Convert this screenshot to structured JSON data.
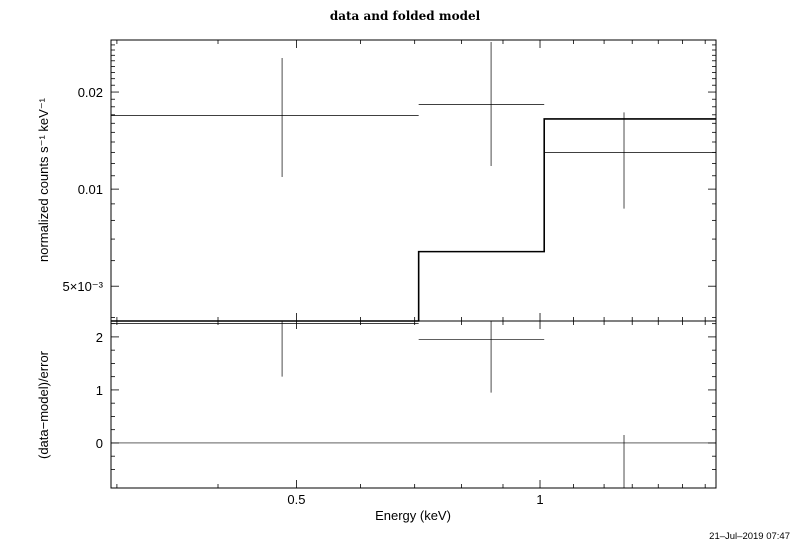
{
  "chart_data": [
    {
      "panel": "top",
      "type": "line",
      "title": "data and folded model",
      "xlabel": "",
      "ylabel": "normalized counts s⁻¹ keV⁻¹",
      "xscale": "log",
      "yscale": "log",
      "xlim": [
        0.295,
        1.65
      ],
      "ylim": [
        0.0039,
        0.029
      ],
      "yticks": [
        {
          "value": 0.02,
          "label": "0.02"
        },
        {
          "value": 0.01,
          "label": "0.01"
        },
        {
          "value": 0.005,
          "label": "5×10⁻³"
        }
      ],
      "data": [
        {
          "xlo": 0.295,
          "xhi": 0.708,
          "x": 0.48,
          "y": 0.0169,
          "ylo": 0.0109,
          "yhi": 0.0255
        },
        {
          "xlo": 0.708,
          "xhi": 1.012,
          "x": 0.87,
          "y": 0.0183,
          "ylo": 0.0118,
          "yhi": 0.0286
        },
        {
          "xlo": 1.012,
          "xhi": 1.65,
          "x": 1.27,
          "y": 0.013,
          "ylo": 0.0087,
          "yhi": 0.0173
        }
      ],
      "model": [
        {
          "xlo": 0.295,
          "xhi": 0.708,
          "y": 0.0039
        },
        {
          "xlo": 0.708,
          "xhi": 1.012,
          "y": 0.0064
        },
        {
          "xlo": 1.012,
          "xhi": 1.65,
          "y": 0.0165
        }
      ]
    },
    {
      "panel": "bottom",
      "type": "line",
      "xlabel": "Energy (keV)",
      "ylabel": "(data−model)/error",
      "xscale": "log",
      "xlim": [
        0.295,
        1.65
      ],
      "ylim": [
        -0.85,
        2.3
      ],
      "xticks": [
        {
          "value": 0.5,
          "label": "0.5"
        },
        {
          "value": 1,
          "label": "1"
        }
      ],
      "yticks": [
        {
          "value": 2,
          "label": "2"
        },
        {
          "value": 1,
          "label": "1"
        },
        {
          "value": 0,
          "label": "0"
        }
      ],
      "zero_line": 0,
      "data": [
        {
          "xlo": 0.295,
          "xhi": 0.708,
          "x": 0.48,
          "y": 2.25,
          "ylo": 1.25,
          "yhi": 2.3
        },
        {
          "xlo": 0.708,
          "xhi": 1.012,
          "x": 0.87,
          "y": 1.95,
          "ylo": 0.95,
          "yhi": 2.3
        },
        {
          "xlo": 1.012,
          "xhi": 1.65,
          "x": 1.27,
          "y": -0.85,
          "ylo": -0.85,
          "yhi": 0.15
        }
      ]
    }
  ],
  "footer": {
    "timestamp": "21–Jul–2019 07:47"
  }
}
